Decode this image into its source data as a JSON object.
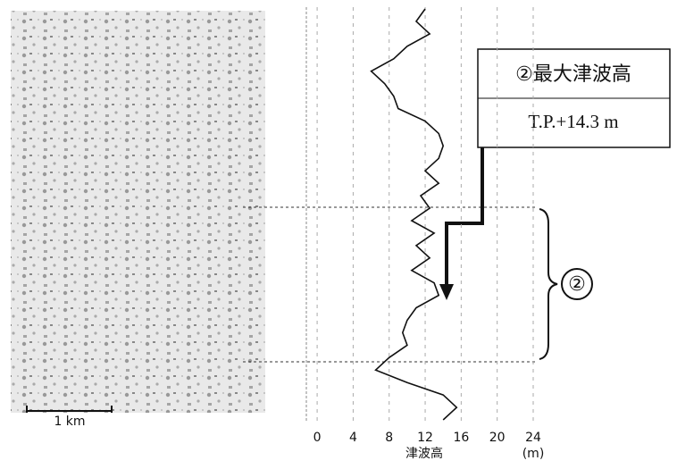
{
  "chart_data": {
    "type": "line",
    "xlabel": "津波高",
    "xunit": "(m)",
    "xlim": [
      -1.2,
      24
    ],
    "xticks": [
      0,
      4,
      8,
      12,
      16,
      20,
      24
    ],
    "grid": true,
    "series": [
      {
        "color": "#111111",
        "values": [
          12,
          11,
          12.5,
          10,
          8.5,
          6,
          7.5,
          8.5,
          9,
          12,
          13.5,
          14,
          13.5,
          12,
          13.5,
          11.5,
          12.5,
          10.5,
          13,
          11,
          12.5,
          10.5,
          13,
          13.5,
          11,
          10,
          9.5,
          10,
          8,
          6.5,
          10,
          14,
          15.5,
          14
        ]
      }
    ],
    "annotations": {
      "box_title": "②最大津波高",
      "box_value": "T.P.+14.3 m",
      "range_label": "②",
      "scale_label": "1 km"
    }
  }
}
